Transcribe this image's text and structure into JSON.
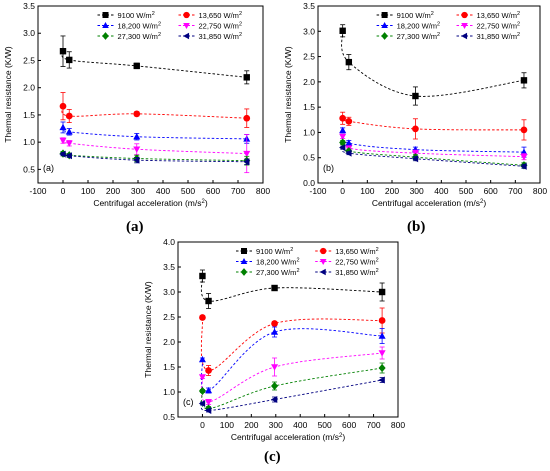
{
  "captions": [
    "(a)",
    "(b)",
    "(c)"
  ],
  "legend_labels": [
    "9100 W/m²",
    "13,650 W/m²",
    "18,200 W/m²",
    "22,750 W/m²",
    "27,300 W/m²",
    "31,850 W/m²"
  ],
  "chart_data": [
    {
      "type": "scatter",
      "panel_label": "(a)",
      "xlabel": "Centrifugal acceleration (m/s²)",
      "ylabel": "Thermal resistance (K/W)",
      "xlim": [
        -100,
        800
      ],
      "ylim": [
        0.25,
        3.5
      ],
      "xticks": [
        -100,
        0,
        100,
        200,
        300,
        400,
        500,
        600,
        700,
        800
      ],
      "yticks": [
        0.5,
        1.0,
        1.5,
        2.0,
        2.5,
        3.0,
        3.5
      ],
      "legend_position": "top-right",
      "x": [
        0,
        25,
        295,
        735
      ],
      "series": [
        {
          "name": "9100 W/m²",
          "color": "#000000",
          "marker": "square",
          "values": [
            2.67,
            2.51,
            2.4,
            2.19
          ],
          "errors": [
            0.28,
            0.15,
            0.05,
            0.12
          ]
        },
        {
          "name": "13,650 W/m²",
          "color": "#ff0000",
          "marker": "circle",
          "values": [
            1.66,
            1.48,
            1.52,
            1.44
          ],
          "errors": [
            0.25,
            0.12,
            0.04,
            0.17
          ]
        },
        {
          "name": "18,200 W/m²",
          "color": "#0000ff",
          "marker": "triangle-up",
          "values": [
            1.27,
            1.19,
            1.1,
            1.06
          ],
          "errors": [
            0.1,
            0.06,
            0.06,
            0.08
          ]
        },
        {
          "name": "22,750 W/m²",
          "color": "#ff00ff",
          "marker": "triangle-down",
          "values": [
            1.03,
            0.98,
            0.87,
            0.79
          ],
          "errors": [
            0.05,
            0.05,
            0.1,
            0.35
          ]
        },
        {
          "name": "27,300 W/m²",
          "color": "#008000",
          "marker": "diamond",
          "values": [
            0.79,
            0.76,
            0.7,
            0.66
          ],
          "errors": [
            0.04,
            0.03,
            0.06,
            0.08
          ]
        },
        {
          "name": "31,850 W/m²",
          "color": "#000080",
          "marker": "triangle-left",
          "values": [
            0.78,
            0.75,
            0.67,
            0.64
          ],
          "errors": [
            0.03,
            0.03,
            0.05,
            0.05
          ]
        }
      ]
    },
    {
      "type": "scatter",
      "panel_label": "(b)",
      "xlabel": "Centrifugal acceleration (m/s²)",
      "ylabel": "Thermal resistance (K/W)",
      "xlim": [
        -100,
        800
      ],
      "ylim": [
        0.0,
        3.5
      ],
      "xticks": [
        -100,
        0,
        100,
        200,
        300,
        400,
        500,
        600,
        700,
        800
      ],
      "yticks": [
        0.0,
        0.5,
        1.0,
        1.5,
        2.0,
        2.5,
        3.0,
        3.5
      ],
      "legend_position": "top-right",
      "x": [
        0,
        25,
        295,
        735
      ],
      "series": [
        {
          "name": "9100 W/m²",
          "color": "#000000",
          "marker": "square",
          "values": [
            3.01,
            2.39,
            1.72,
            2.03
          ],
          "errors": [
            0.12,
            0.15,
            0.18,
            0.15
          ]
        },
        {
          "name": "13,650 W/m²",
          "color": "#ff0000",
          "marker": "circle",
          "values": [
            1.28,
            1.22,
            1.07,
            1.05
          ],
          "errors": [
            0.12,
            0.08,
            0.2,
            0.2
          ]
        },
        {
          "name": "18,200 W/m²",
          "color": "#0000ff",
          "marker": "triangle-up",
          "values": [
            1.04,
            0.79,
            0.66,
            0.61
          ],
          "errors": [
            0.05,
            0.05,
            0.05,
            0.1
          ]
        },
        {
          "name": "22,750 W/m²",
          "color": "#ff00ff",
          "marker": "triangle-down",
          "values": [
            0.92,
            0.69,
            0.59,
            0.52
          ],
          "errors": [
            0.04,
            0.04,
            0.06,
            0.06
          ]
        },
        {
          "name": "27,300 W/m²",
          "color": "#008000",
          "marker": "diamond",
          "values": [
            0.8,
            0.63,
            0.51,
            0.35
          ],
          "errors": [
            0.04,
            0.04,
            0.05,
            0.05
          ]
        },
        {
          "name": "31,850 W/m²",
          "color": "#000080",
          "marker": "triangle-left",
          "values": [
            0.7,
            0.59,
            0.48,
            0.33
          ],
          "errors": [
            0.03,
            0.03,
            0.04,
            0.04
          ]
        }
      ]
    },
    {
      "type": "scatter",
      "panel_label": "(c)",
      "xlabel": "Centrifugal acceleration (m/s²)",
      "ylabel": "Thermal resistance (K/W)",
      "xlim": [
        -100,
        800
      ],
      "ylim": [
        0.5,
        4.0
      ],
      "xticks": [
        0,
        100,
        200,
        300,
        400,
        500,
        600,
        700,
        800
      ],
      "yticks": [
        0.5,
        1.0,
        1.5,
        2.0,
        2.5,
        3.0,
        3.5,
        4.0
      ],
      "legend_position": "top-right",
      "x": [
        0,
        25,
        295,
        735
      ],
      "series": [
        {
          "name": "9100 W/m²",
          "color": "#000000",
          "marker": "square",
          "values": [
            3.32,
            2.82,
            3.08,
            3.0
          ],
          "errors": [
            0.12,
            0.15,
            0.03,
            0.18
          ]
        },
        {
          "name": "13,650 W/m²",
          "color": "#ff0000",
          "marker": "circle",
          "values": [
            2.49,
            1.43,
            2.37,
            2.43
          ],
          "errors": [
            0.03,
            0.1,
            0.04,
            0.25
          ]
        },
        {
          "name": "18,200 W/m²",
          "color": "#0000ff",
          "marker": "triangle-up",
          "values": [
            1.65,
            1.03,
            2.2,
            2.12
          ],
          "errors": [
            0.03,
            0.05,
            0.1,
            0.15
          ]
        },
        {
          "name": "22,750 W/m²",
          "color": "#ff00ff",
          "marker": "triangle-down",
          "values": [
            1.3,
            0.8,
            1.5,
            1.78
          ],
          "errors": [
            0.03,
            0.05,
            0.18,
            0.12
          ]
        },
        {
          "name": "27,300 W/m²",
          "color": "#008000",
          "marker": "diamond",
          "values": [
            1.02,
            0.67,
            1.12,
            1.48
          ],
          "errors": [
            0.03,
            0.04,
            0.08,
            0.1
          ]
        },
        {
          "name": "31,850 W/m²",
          "color": "#000080",
          "marker": "triangle-left",
          "values": [
            0.77,
            0.63,
            0.85,
            1.24
          ],
          "errors": [
            0.03,
            0.03,
            0.05,
            0.05
          ]
        }
      ]
    }
  ]
}
